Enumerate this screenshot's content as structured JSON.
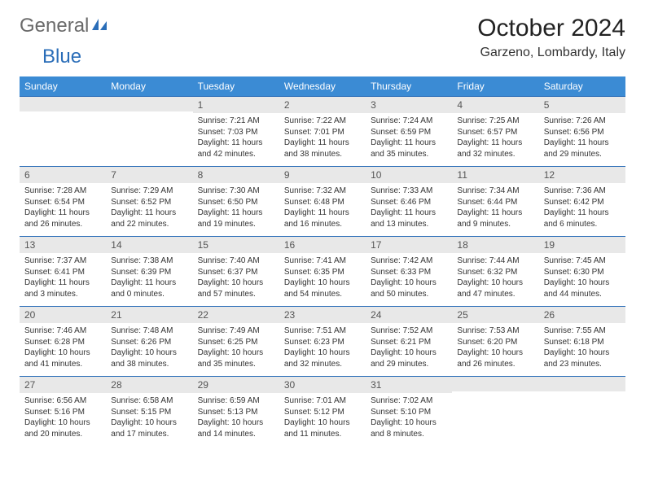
{
  "logo": {
    "general": "General",
    "blue": "Blue"
  },
  "title": "October 2024",
  "location": "Garzeno, Lombardy, Italy",
  "colors": {
    "header_bg": "#3b8bd4",
    "header_fg": "#ffffff",
    "rule": "#2a6db8",
    "daynum_bg": "#e8e8e8",
    "daynum_fg": "#555555",
    "text": "#333333",
    "logo_general": "#6a6a6a",
    "logo_blue": "#2a6db8",
    "page_bg": "#ffffff"
  },
  "days_of_week": [
    "Sunday",
    "Monday",
    "Tuesday",
    "Wednesday",
    "Thursday",
    "Friday",
    "Saturday"
  ],
  "weeks": [
    [
      null,
      null,
      {
        "n": "1",
        "sr": "7:21 AM",
        "ss": "7:03 PM",
        "dl": "11 hours and 42 minutes."
      },
      {
        "n": "2",
        "sr": "7:22 AM",
        "ss": "7:01 PM",
        "dl": "11 hours and 38 minutes."
      },
      {
        "n": "3",
        "sr": "7:24 AM",
        "ss": "6:59 PM",
        "dl": "11 hours and 35 minutes."
      },
      {
        "n": "4",
        "sr": "7:25 AM",
        "ss": "6:57 PM",
        "dl": "11 hours and 32 minutes."
      },
      {
        "n": "5",
        "sr": "7:26 AM",
        "ss": "6:56 PM",
        "dl": "11 hours and 29 minutes."
      }
    ],
    [
      {
        "n": "6",
        "sr": "7:28 AM",
        "ss": "6:54 PM",
        "dl": "11 hours and 26 minutes."
      },
      {
        "n": "7",
        "sr": "7:29 AM",
        "ss": "6:52 PM",
        "dl": "11 hours and 22 minutes."
      },
      {
        "n": "8",
        "sr": "7:30 AM",
        "ss": "6:50 PM",
        "dl": "11 hours and 19 minutes."
      },
      {
        "n": "9",
        "sr": "7:32 AM",
        "ss": "6:48 PM",
        "dl": "11 hours and 16 minutes."
      },
      {
        "n": "10",
        "sr": "7:33 AM",
        "ss": "6:46 PM",
        "dl": "11 hours and 13 minutes."
      },
      {
        "n": "11",
        "sr": "7:34 AM",
        "ss": "6:44 PM",
        "dl": "11 hours and 9 minutes."
      },
      {
        "n": "12",
        "sr": "7:36 AM",
        "ss": "6:42 PM",
        "dl": "11 hours and 6 minutes."
      }
    ],
    [
      {
        "n": "13",
        "sr": "7:37 AM",
        "ss": "6:41 PM",
        "dl": "11 hours and 3 minutes."
      },
      {
        "n": "14",
        "sr": "7:38 AM",
        "ss": "6:39 PM",
        "dl": "11 hours and 0 minutes."
      },
      {
        "n": "15",
        "sr": "7:40 AM",
        "ss": "6:37 PM",
        "dl": "10 hours and 57 minutes."
      },
      {
        "n": "16",
        "sr": "7:41 AM",
        "ss": "6:35 PM",
        "dl": "10 hours and 54 minutes."
      },
      {
        "n": "17",
        "sr": "7:42 AM",
        "ss": "6:33 PM",
        "dl": "10 hours and 50 minutes."
      },
      {
        "n": "18",
        "sr": "7:44 AM",
        "ss": "6:32 PM",
        "dl": "10 hours and 47 minutes."
      },
      {
        "n": "19",
        "sr": "7:45 AM",
        "ss": "6:30 PM",
        "dl": "10 hours and 44 minutes."
      }
    ],
    [
      {
        "n": "20",
        "sr": "7:46 AM",
        "ss": "6:28 PM",
        "dl": "10 hours and 41 minutes."
      },
      {
        "n": "21",
        "sr": "7:48 AM",
        "ss": "6:26 PM",
        "dl": "10 hours and 38 minutes."
      },
      {
        "n": "22",
        "sr": "7:49 AM",
        "ss": "6:25 PM",
        "dl": "10 hours and 35 minutes."
      },
      {
        "n": "23",
        "sr": "7:51 AM",
        "ss": "6:23 PM",
        "dl": "10 hours and 32 minutes."
      },
      {
        "n": "24",
        "sr": "7:52 AM",
        "ss": "6:21 PM",
        "dl": "10 hours and 29 minutes."
      },
      {
        "n": "25",
        "sr": "7:53 AM",
        "ss": "6:20 PM",
        "dl": "10 hours and 26 minutes."
      },
      {
        "n": "26",
        "sr": "7:55 AM",
        "ss": "6:18 PM",
        "dl": "10 hours and 23 minutes."
      }
    ],
    [
      {
        "n": "27",
        "sr": "6:56 AM",
        "ss": "5:16 PM",
        "dl": "10 hours and 20 minutes."
      },
      {
        "n": "28",
        "sr": "6:58 AM",
        "ss": "5:15 PM",
        "dl": "10 hours and 17 minutes."
      },
      {
        "n": "29",
        "sr": "6:59 AM",
        "ss": "5:13 PM",
        "dl": "10 hours and 14 minutes."
      },
      {
        "n": "30",
        "sr": "7:01 AM",
        "ss": "5:12 PM",
        "dl": "10 hours and 11 minutes."
      },
      {
        "n": "31",
        "sr": "7:02 AM",
        "ss": "5:10 PM",
        "dl": "10 hours and 8 minutes."
      },
      null,
      null
    ]
  ],
  "labels": {
    "sunrise": "Sunrise:",
    "sunset": "Sunset:",
    "daylight": "Daylight:"
  }
}
